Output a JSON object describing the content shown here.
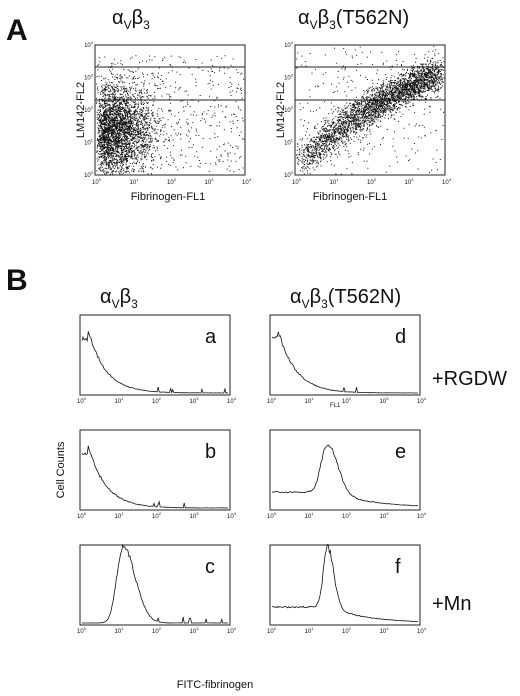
{
  "panels": {
    "A": {
      "label": "A",
      "left_title": [
        "α",
        "V",
        "β",
        "3"
      ],
      "right_title": [
        "α",
        "V",
        "β",
        "3",
        "(T562N)"
      ],
      "y_label": "LM142-FL2",
      "x_label": "Fibrinogen-FL1"
    },
    "B": {
      "label": "B",
      "left_title": [
        "α",
        "V",
        "β",
        "3"
      ],
      "right_title": [
        "α",
        "V",
        "β",
        "3",
        "(T562N)"
      ],
      "letters": [
        "a",
        "b",
        "c",
        "d",
        "e",
        "f"
      ],
      "rgdw": "+RGDW",
      "mn": "+Mn",
      "y_label": "Cell Counts",
      "x_label": "FITC-fibrinogen",
      "fl1": "FL1"
    }
  },
  "ticks": {
    "base": "10",
    "exponents": [
      "0",
      "1",
      "2",
      "3",
      "4"
    ]
  }
}
